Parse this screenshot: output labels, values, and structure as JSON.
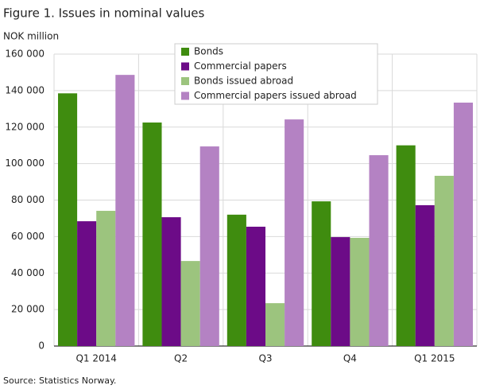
{
  "chart_data": {
    "type": "bar",
    "title": "Figure 1. Issues in nominal values",
    "y_label": "NOK million",
    "source": "Source: Statistics Norway.",
    "categories": [
      "Q1 2014",
      "Q2",
      "Q3",
      "Q4",
      "Q1 2015"
    ],
    "series": [
      {
        "name": "Bonds",
        "color": "#3f8c0f",
        "values": [
          138500,
          122500,
          72000,
          79300,
          110000
        ]
      },
      {
        "name": "Commercial papers",
        "color": "#6c0b87",
        "values": [
          68400,
          70600,
          65400,
          59700,
          77200
        ]
      },
      {
        "name": "Bonds issued abroad",
        "color": "#9cc47e",
        "values": [
          74100,
          46600,
          23500,
          59300,
          93300
        ]
      },
      {
        "name": "Commercial papers issued abroad",
        "color": "#b482c3",
        "values": [
          148600,
          109400,
          124200,
          104600,
          133400
        ]
      }
    ],
    "ylim": [
      0,
      160000
    ],
    "yticks": [
      0,
      {
        "value": 20000,
        "label": "20 000"
      },
      {
        "value": 40000,
        "label": "40 000"
      },
      {
        "value": 60000,
        "label": "60 000"
      },
      {
        "value": 80000,
        "label": "80 000"
      },
      {
        "value": 100000,
        "label": "100 000"
      },
      {
        "value": 120000,
        "label": "120 000"
      },
      {
        "value": 140000,
        "label": "140 000"
      },
      {
        "value": 160000,
        "label": "160 000"
      }
    ],
    "grid": true,
    "legend": "top"
  }
}
